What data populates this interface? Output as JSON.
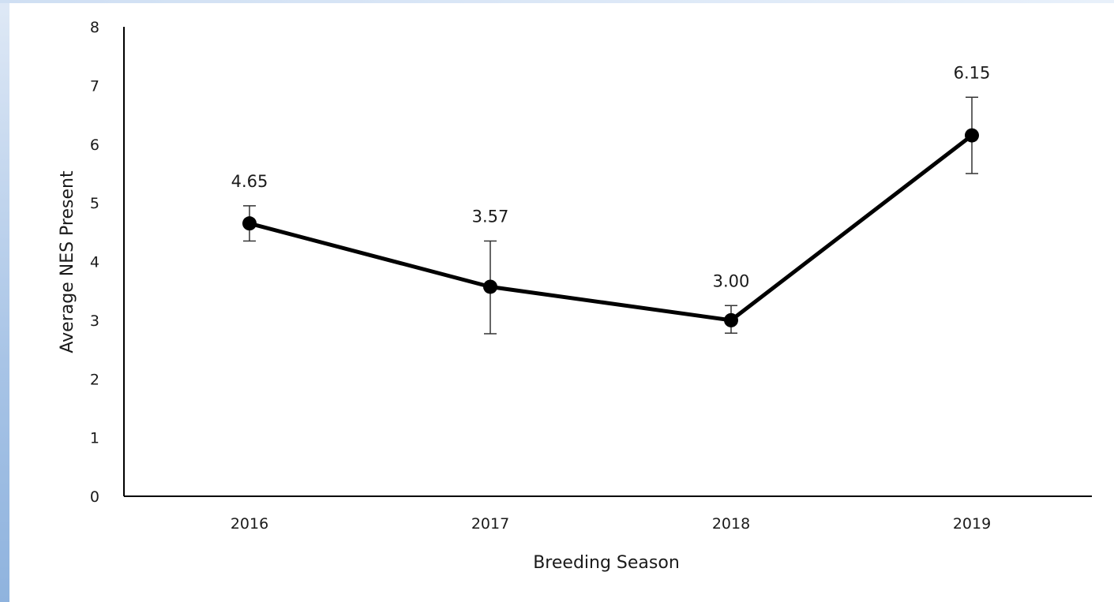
{
  "chart_data": {
    "type": "line",
    "categories": [
      "2016",
      "2017",
      "2018",
      "2019"
    ],
    "series": [
      {
        "values": [
          4.65,
          3.57,
          3.0,
          6.15
        ],
        "error_upper": [
          4.95,
          4.35,
          3.25,
          6.8
        ],
        "error_lower": [
          4.35,
          2.77,
          2.78,
          5.5
        ],
        "data_labels": [
          "4.65",
          "3.57",
          "3.00",
          "6.15"
        ],
        "color": "#000000"
      }
    ],
    "xlabel": "Breeding Season",
    "ylabel": "Average NES Present",
    "ylim": [
      0,
      8
    ],
    "yticks": [
      "0",
      "1",
      "2",
      "3",
      "4",
      "5",
      "6",
      "7",
      "8"
    ],
    "grid": false,
    "legend": "none"
  }
}
